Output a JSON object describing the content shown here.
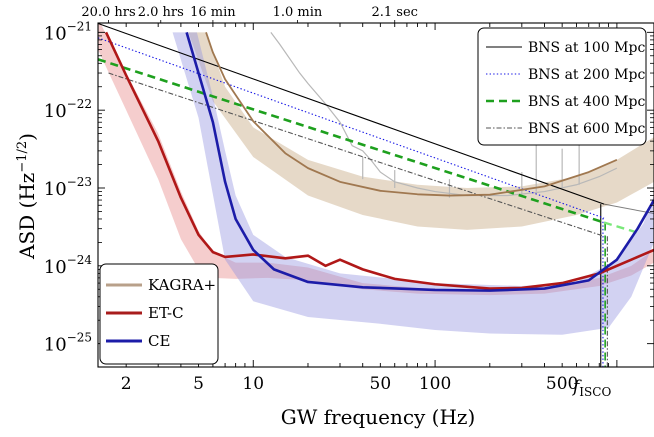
{
  "chart_data": {
    "type": "line",
    "title": "",
    "xlabel": "GW frequency (Hz)",
    "ylabel_main": "ASD (Hz",
    "ylabel_exp": "−1/2",
    "ylabel_close": ")",
    "x_scale": "log",
    "y_scale": "log",
    "xlim": [
      1.4,
      1600
    ],
    "ylim_exp": [
      -25.3,
      -20.88
    ],
    "x_ticks": [
      {
        "value": 2,
        "label": "2"
      },
      {
        "value": 5,
        "label": "5"
      },
      {
        "value": 10,
        "label": "10"
      },
      {
        "value": 50,
        "label": "50"
      },
      {
        "value": 100,
        "label": "100"
      },
      {
        "value": 500,
        "label": "500"
      }
    ],
    "f_isco": {
      "value": 850,
      "label": "f",
      "sub": "ISCO"
    },
    "y_ticks": [
      {
        "exp": -21,
        "base": "10",
        "label": "−21"
      },
      {
        "exp": -22,
        "base": "10",
        "label": "−22"
      },
      {
        "exp": -23,
        "base": "10",
        "label": "−23"
      },
      {
        "exp": -24,
        "base": "10",
        "label": "−24"
      },
      {
        "exp": -25,
        "base": "10",
        "label": "−25"
      }
    ],
    "top_axis": [
      {
        "freq": 1.6,
        "label": "20.0 hrs"
      },
      {
        "freq": 3.1,
        "label": "2.0 hrs"
      },
      {
        "freq": 6.0,
        "label": "16 min"
      },
      {
        "freq": 17.5,
        "label": "1.0 min"
      },
      {
        "freq": 60,
        "label": "2.1 sec"
      }
    ],
    "series": [
      {
        "name": "KAGRA+",
        "color": "#a07850",
        "legend_color": "#b8a08a",
        "band_color": "#c4a47c",
        "upper": [
          [
            5.5,
            1e-21
          ],
          [
            7,
            2e-22
          ],
          [
            10,
            6e-23
          ],
          [
            20,
            2.3e-23
          ],
          [
            40,
            1.4e-23
          ],
          [
            80,
            1.1e-23
          ],
          [
            150,
            1e-23
          ],
          [
            300,
            1.05e-23
          ],
          [
            600,
            1.4e-23
          ],
          [
            1000,
            2.3e-23
          ],
          [
            1600,
            4.5e-23
          ]
        ],
        "lower": [
          [
            4.4,
            1e-21
          ],
          [
            6,
            1.3e-22
          ],
          [
            10,
            2.5e-23
          ],
          [
            20,
            8e-24
          ],
          [
            40,
            4.5e-24
          ],
          [
            80,
            3.2e-24
          ],
          [
            150,
            2.9e-24
          ],
          [
            300,
            3.2e-24
          ],
          [
            600,
            4.5e-24
          ],
          [
            1000,
            6.5e-24
          ],
          [
            1600,
            1.2e-23
          ]
        ],
        "line": [
          [
            5.5,
            1e-21
          ],
          [
            6,
            5.5e-22
          ],
          [
            7,
            2.5e-22
          ],
          [
            10,
            7.2e-23
          ],
          [
            15,
            2.8e-23
          ],
          [
            20,
            1.8e-23
          ],
          [
            30,
            1.2e-23
          ],
          [
            50,
            9.2e-24
          ],
          [
            80,
            8.3e-24
          ],
          [
            120,
            8e-24
          ],
          [
            200,
            8.2e-24
          ],
          [
            400,
            1.05e-23
          ],
          [
            700,
            1.6e-23
          ],
          [
            1000,
            2.3e-23
          ]
        ]
      },
      {
        "name": "ET-C",
        "color": "#b01818",
        "legend_color": "#a81c1c",
        "band_color": "#e88888",
        "upper": [
          [
            1.4,
            1.5e-21
          ],
          [
            2,
            3e-22
          ],
          [
            3,
            5e-23
          ],
          [
            4,
            9e-24
          ],
          [
            5,
            2.8e-24
          ],
          [
            6,
            1.5e-24
          ],
          [
            8,
            1.1e-24
          ],
          [
            12,
            1.1e-24
          ],
          [
            20,
            9.5e-25
          ],
          [
            40,
            6e-25
          ],
          [
            80,
            5.2e-25
          ],
          [
            200,
            4.7e-25
          ],
          [
            400,
            5.2e-25
          ],
          [
            800,
            7e-25
          ],
          [
            1200,
            1e-24
          ],
          [
            1600,
            1.6e-24
          ]
        ],
        "lower": [
          [
            1.4,
            6e-22
          ],
          [
            2,
            1e-22
          ],
          [
            3,
            1.3e-23
          ],
          [
            4,
            2.2e-24
          ],
          [
            5,
            9e-25
          ],
          [
            6,
            7e-25
          ],
          [
            8,
            6.8e-25
          ],
          [
            12,
            7e-25
          ],
          [
            20,
            6.5e-25
          ],
          [
            40,
            5e-25
          ],
          [
            80,
            4.4e-25
          ],
          [
            200,
            4.2e-25
          ],
          [
            400,
            4.4e-25
          ],
          [
            800,
            5.5e-25
          ],
          [
            1200,
            7.5e-25
          ],
          [
            1600,
            1.1e-24
          ]
        ],
        "line": [
          [
            1.55,
            1e-21
          ],
          [
            2,
            2.8e-22
          ],
          [
            3,
            4e-23
          ],
          [
            4,
            7.5e-24
          ],
          [
            5,
            2.5e-24
          ],
          [
            6,
            1.5e-24
          ],
          [
            7,
            1.3e-24
          ],
          [
            10,
            1.4e-24
          ],
          [
            15,
            1.25e-24
          ],
          [
            20,
            1.35e-24
          ],
          [
            25,
            1e-24
          ],
          [
            30,
            1.2e-24
          ],
          [
            40,
            9e-25
          ],
          [
            60,
            6.8e-25
          ],
          [
            100,
            5.8e-25
          ],
          [
            200,
            5.1e-25
          ],
          [
            300,
            5.2e-25
          ],
          [
            500,
            6e-25
          ],
          [
            800,
            8e-25
          ],
          [
            1200,
            1.2e-24
          ],
          [
            1600,
            1.6e-24
          ]
        ]
      },
      {
        "name": "CE",
        "color": "#1c1ca8",
        "legend_color": "#1c1ca8",
        "band_color": "#9494e0",
        "upper": [
          [
            4.9,
            1e-21
          ],
          [
            6,
            1.5e-22
          ],
          [
            7,
            3e-23
          ],
          [
            8,
            8e-24
          ],
          [
            10,
            2.5e-24
          ],
          [
            15,
            1.3e-24
          ],
          [
            30,
            8e-25
          ],
          [
            100,
            6e-25
          ],
          [
            300,
            5.5e-25
          ],
          [
            600,
            6.2e-25
          ],
          [
            1000,
            1.2e-24
          ],
          [
            1400,
            3.5e-24
          ],
          [
            1600,
            8e-24
          ]
        ],
        "lower": [
          [
            3.6,
            1e-21
          ],
          [
            5,
            8e-23
          ],
          [
            7,
            1.2e-24
          ],
          [
            10,
            3.5e-25
          ],
          [
            20,
            2.2e-25
          ],
          [
            50,
            1.8e-25
          ],
          [
            100,
            1.5e-25
          ],
          [
            200,
            1.35e-25
          ],
          [
            500,
            1.3e-25
          ],
          [
            900,
            1.6e-25
          ],
          [
            1200,
            4e-25
          ],
          [
            1600,
            2e-24
          ]
        ],
        "line": [
          [
            4.3,
            1e-21
          ],
          [
            5,
            3e-22
          ],
          [
            6,
            7e-23
          ],
          [
            7,
            1.2e-23
          ],
          [
            8,
            4e-24
          ],
          [
            10,
            1.6e-24
          ],
          [
            13,
            9e-25
          ],
          [
            20,
            6.2e-25
          ],
          [
            40,
            5.3e-25
          ],
          [
            100,
            4.9e-25
          ],
          [
            200,
            4.8e-25
          ],
          [
            400,
            5.1e-25
          ],
          [
            700,
            6.5e-25
          ],
          [
            1000,
            1.2e-24
          ],
          [
            1300,
            3e-24
          ],
          [
            1600,
            7e-24
          ]
        ]
      }
    ],
    "gray_curve": [
      [
        12.5,
        1e-21
      ],
      [
        14,
        7e-22
      ],
      [
        18,
        3e-22
      ],
      [
        20,
        2.2e-22
      ],
      [
        25,
        1.2e-22
      ],
      [
        30,
        7e-23
      ],
      [
        35,
        3.5e-23
      ],
      [
        40,
        3e-23
      ],
      [
        45,
        2.2e-23
      ],
      [
        50,
        1.6e-23
      ],
      [
        60,
        1.2e-23
      ],
      [
        80,
        1e-23
      ],
      [
        100,
        9e-24
      ],
      [
        150,
        8e-24
      ],
      [
        250,
        8e-24
      ],
      [
        400,
        9e-24
      ],
      [
        600,
        1.1e-23
      ],
      [
        800,
        1.4e-23
      ],
      [
        1000,
        1.8e-23
      ]
    ],
    "gray_spikes": [
      [
        40,
        1.3e-23,
        2.5e-23
      ],
      [
        60,
        1e-23,
        1.7e-23
      ],
      [
        120,
        7.5e-24,
        1.3e-23
      ],
      [
        300,
        8e-24,
        1.6e-23
      ],
      [
        360,
        9e-24,
        4e-23
      ],
      [
        500,
        1e-23,
        3.2e-23
      ],
      [
        620,
        1.1e-23,
        4e-23
      ]
    ],
    "bns_lines": [
      {
        "name": "BNS at 100 Mpc",
        "color": "#000000",
        "dash": "",
        "width": 1.1,
        "start": [
          1.4,
          1.3e-21
        ],
        "isco_value": 6.2e-24
      },
      {
        "name": "BNS at 200 Mpc",
        "color": "#1414e6",
        "dash": "1.4 2.2",
        "width": 1.1,
        "start": [
          1.4,
          8.5e-22
        ],
        "isco_value": 4.1e-24
      },
      {
        "name": "BNS at 400 Mpc",
        "color": "#1ea01e",
        "dash": "8 5",
        "width": 2.6,
        "start": [
          1.4,
          4.5e-22
        ],
        "isco_value": 3.6e-24
      },
      {
        "name": "BNS at 600 Mpc",
        "color": "#555555",
        "dash": "5 2 1.5 2",
        "width": 1.1,
        "start": [
          1.6,
          3e-22
        ],
        "isco_value": 2.4e-24
      }
    ]
  }
}
